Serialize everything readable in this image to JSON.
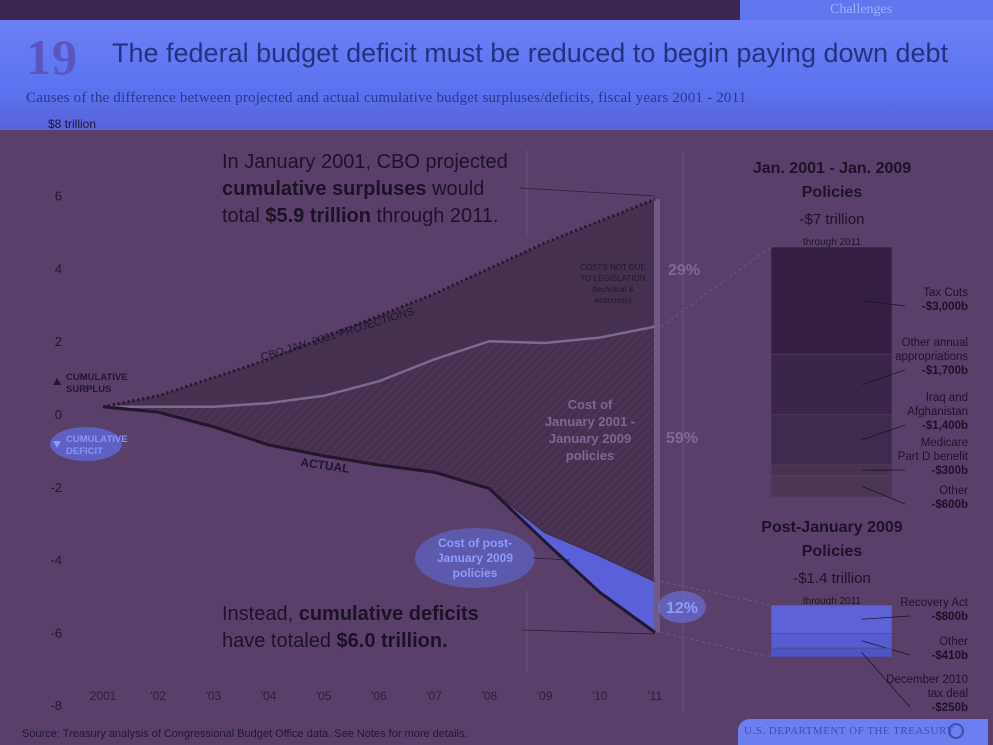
{
  "nav": {
    "active_tab": "Challenges"
  },
  "header": {
    "slide_number": "19",
    "title": "The federal budget deficit must be reduced to begin paying down debt",
    "subtitle": "Causes of the difference between projected and actual cumulative budget surpluses/deficits, fiscal years 2001 - 2011"
  },
  "footer": {
    "source": "Source: Treasury analysis of Congressional Budget Office data. See Notes for more details.",
    "agency": "U.S. DEPARTMENT OF THE TREASURY"
  },
  "colors": {
    "background": "#5b3f6b",
    "header_blue": "#5b74f2",
    "wedge_dark": "#45304f",
    "post_2009_blue": "#5a60d8",
    "bar_dark": "#331f40"
  },
  "chart_data": [
    {
      "type": "line",
      "x": [
        "2001",
        "'02",
        "'03",
        "'04",
        "'05",
        "'06",
        "'07",
        "'08",
        "'09",
        "'10",
        "'11"
      ],
      "ylim": [
        -8,
        8
      ],
      "yticks": [
        "$8 trillion",
        "6",
        "4",
        "2",
        "0",
        "-2",
        "-4",
        "-6",
        "-8"
      ],
      "series": [
        {
          "name": "CBO JAN. 2001 PROJECTIONS",
          "values": [
            0.2,
            0.5,
            1.0,
            1.5,
            2.1,
            2.7,
            3.3,
            4.0,
            4.7,
            5.3,
            5.9
          ]
        },
        {
          "name": "ACTUAL",
          "values": [
            0.2,
            0.05,
            -0.35,
            -0.85,
            -1.15,
            -1.4,
            -1.6,
            -2.05,
            -3.5,
            -4.9,
            -6.0
          ]
        },
        {
          "name": "",
          "values": [
            0.2,
            0.2,
            0.2,
            0.3,
            0.5,
            0.9,
            1.5,
            2.0,
            1.95,
            2.1,
            2.4
          ]
        },
        {
          "name": "",
          "values": [
            null,
            null,
            null,
            null,
            null,
            null,
            null,
            -2.05,
            -3.25,
            -3.9,
            -4.6
          ]
        }
      ],
      "legend": {
        "surplus": "CUMULATIVE\nSURPLUS",
        "deficit": "CUMULATIVE\nDEFICIT"
      },
      "annotations": {
        "projection_note": [
          "In January 2001, CBO projected",
          "cumulative surpluses would",
          "total $5.9 trillion through 2011."
        ],
        "actual_note": [
          "Instead, cumulative deficits",
          "have totaled $6.0 trillion."
        ],
        "costs_not_due": [
          "COSTS NOT DUE",
          "TO LEGISLATION",
          "(technical &",
          "economic)"
        ],
        "cost_2001_2009": [
          "Cost of",
          "January 2001 -",
          "January 2009",
          "policies"
        ],
        "cost_post_2009": [
          "Cost of post-",
          "January 2009",
          "policies"
        ],
        "pct_not_legislation": "29%",
        "pct_2001_2009": "59%",
        "pct_post_2009": "12%"
      }
    },
    {
      "type": "bar",
      "title": "Jan. 2001 - Jan. 2009\nPolicies",
      "total": "-$7 trillion",
      "period": "through 2011",
      "segments": [
        {
          "label": "Tax Cuts",
          "value": "-$3,000b"
        },
        {
          "label": "Other annual appropriations",
          "value": "-$1,700b"
        },
        {
          "label": "Iraq and Afghanistan",
          "value": "-$1,400b"
        },
        {
          "label": "Medicare Part D benefit",
          "value": "-$300b"
        },
        {
          "label": "Other",
          "value": "-$600b"
        }
      ],
      "values": [
        3000,
        1700,
        1400,
        300,
        600
      ]
    },
    {
      "type": "bar",
      "title": "Post-January 2009\nPolicies",
      "total": "-$1.4 trillion",
      "period": "through 2011",
      "segments": [
        {
          "label": "Recovery Act",
          "value": "-$800b"
        },
        {
          "label": "Other",
          "value": "-$410b"
        },
        {
          "label": "December 2010 tax deal",
          "value": "-$250b"
        }
      ],
      "values": [
        800,
        410,
        250
      ]
    }
  ]
}
